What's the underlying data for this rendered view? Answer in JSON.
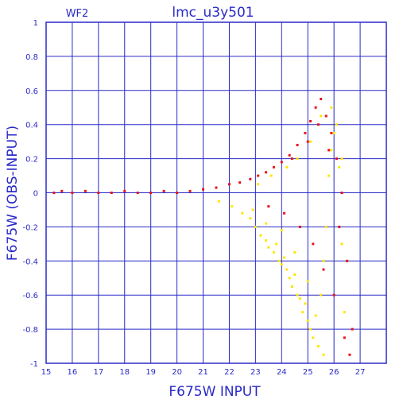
{
  "chart_data": {
    "type": "scatter",
    "title": "lmc_u3y501",
    "panel_label": "WF2",
    "xlabel": "F675W INPUT",
    "ylabel": "F675W (OBS-INPUT)",
    "xlim": [
      15,
      28
    ],
    "ylim": [
      -1,
      1
    ],
    "x_ticks": [
      15,
      16,
      17,
      18,
      19,
      20,
      21,
      22,
      23,
      24,
      25,
      26,
      27
    ],
    "y_ticks": [
      -1,
      -0.8,
      -0.6,
      -0.4,
      -0.2,
      0,
      0.2,
      0.4,
      0.6,
      0.8,
      1
    ],
    "y_tick_labels": [
      "-1",
      "-0.8",
      "-0.6",
      "-0.4",
      "-0.2",
      "0",
      "0.2",
      "0.4",
      "0.6",
      "0.8",
      "1"
    ],
    "grid": true,
    "colors": {
      "axis": "#2a2ac8",
      "grid": "#2a2ac8",
      "series_red": "#e8141e",
      "series_yellow": "#ffe600"
    },
    "series": [
      {
        "color": "#ffe600",
        "x": [
          21.6,
          22.1,
          22.5,
          22.8,
          23.0,
          23.2,
          23.4,
          23.5,
          23.7,
          23.8,
          23.9,
          24.0,
          24.1,
          24.2,
          24.3,
          24.4,
          24.5,
          24.6,
          24.7,
          24.8,
          24.9,
          25.0,
          25.1,
          25.2,
          25.3,
          25.4,
          25.5,
          25.6,
          25.7,
          25.8,
          25.9,
          26.0,
          26.1,
          26.2,
          26.3,
          26.4,
          23.1,
          23.6,
          24.2,
          24.6,
          25.1,
          25.5,
          25.9,
          26.3,
          22.9,
          23.4,
          24.0,
          24.5,
          25.0,
          25.6
        ],
        "y": [
          -0.05,
          -0.08,
          -0.12,
          -0.15,
          -0.2,
          -0.25,
          -0.28,
          -0.32,
          -0.35,
          -0.3,
          -0.4,
          -0.42,
          -0.38,
          -0.45,
          -0.5,
          -0.55,
          -0.48,
          -0.6,
          -0.62,
          -0.7,
          -0.65,
          -0.75,
          -0.8,
          -0.85,
          -0.72,
          -0.9,
          -0.6,
          -0.4,
          -0.2,
          0.1,
          0.25,
          0.35,
          0.4,
          0.15,
          -0.3,
          -0.7,
          0.05,
          0.1,
          0.15,
          0.2,
          0.3,
          0.45,
          0.5,
          0.2,
          -0.1,
          -0.18,
          -0.22,
          -0.35,
          -0.52,
          -0.95
        ]
      },
      {
        "color": "#e8141e",
        "x": [
          15.3,
          15.6,
          16.0,
          16.5,
          17.0,
          17.5,
          18.0,
          18.5,
          19.0,
          19.5,
          20.0,
          20.5,
          21.0,
          21.5,
          22.0,
          22.4,
          22.8,
          23.1,
          23.4,
          23.7,
          24.0,
          24.3,
          24.6,
          24.9,
          25.1,
          25.3,
          25.5,
          25.7,
          25.9,
          26.1,
          26.3,
          26.5,
          26.7,
          23.5,
          24.1,
          24.7,
          25.2,
          25.6,
          26.0,
          26.4,
          24.4,
          25.0,
          25.4,
          25.8,
          26.2,
          26.6
        ],
        "y": [
          0.0,
          0.01,
          0.0,
          0.01,
          0.0,
          0.0,
          0.01,
          0.0,
          0.0,
          0.01,
          0.0,
          0.01,
          0.02,
          0.03,
          0.05,
          0.06,
          0.08,
          0.1,
          0.12,
          0.15,
          0.18,
          0.22,
          0.28,
          0.35,
          0.42,
          0.5,
          0.55,
          0.45,
          0.35,
          0.2,
          0.0,
          -0.4,
          -0.8,
          -0.08,
          -0.12,
          -0.2,
          -0.3,
          -0.45,
          -0.6,
          -0.85,
          0.2,
          0.3,
          0.4,
          0.25,
          -0.2,
          -0.95
        ]
      }
    ]
  }
}
